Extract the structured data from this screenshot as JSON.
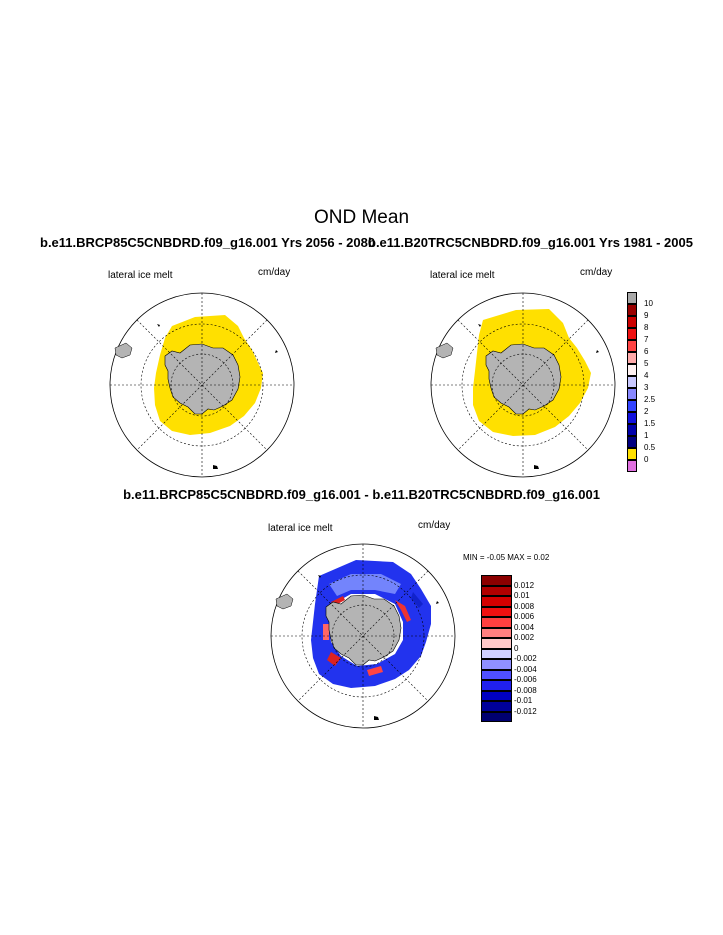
{
  "title": "OND Mean",
  "panels": [
    {
      "title": "b.e11.BRCP85C5CNBDRD.f09_g16.001  Yrs 2056 - 2080",
      "left_label": "lateral ice melt",
      "right_label": "cm/day"
    },
    {
      "title": "b.e11.B20TRC5CNBDRD.f09_g16.001  Yrs 1981 - 2005",
      "left_label": "lateral ice melt",
      "right_label": "cm/day"
    }
  ],
  "difference": {
    "title": "b.e11.BRCP85C5CNBDRD.f09_g16.001 - b.e11.B20TRC5CNBDRD.f09_g16.001",
    "left_label": "lateral ice melt",
    "right_label": "cm/day",
    "min_max": "MIN =  -0.05 MAX =   0.02"
  },
  "colorbar_top": {
    "labels": [
      "10",
      "9",
      "8",
      "7",
      "6",
      "5",
      "4",
      "3",
      "2.5",
      "2",
      "1.5",
      "1",
      "0.5",
      "0"
    ],
    "colors": [
      "#a9a9a9",
      "#990000",
      "#cc0000",
      "#ee1111",
      "#ff4444",
      "#ffaaaa",
      "#fff2f2",
      "#c8c8ff",
      "#8888ff",
      "#3344ff",
      "#1111dd",
      "#0000aa",
      "#000080",
      "#ffe000",
      "#e070e0"
    ]
  },
  "colorbar_diff": {
    "labels": [
      "0.012",
      "0.01",
      "0.008",
      "0.006",
      "0.004",
      "0.002",
      "0",
      "-0.002",
      "-0.004",
      "-0.006",
      "-0.008",
      "-0.01",
      "-0.012"
    ],
    "colors": [
      "#8b0000",
      "#b00000",
      "#d40000",
      "#f01010",
      "#ff4040",
      "#ff8080",
      "#ffc8c8",
      "#d0d0ff",
      "#9090ff",
      "#5050ff",
      "#2020ee",
      "#0000c0",
      "#000099",
      "#000070"
    ]
  },
  "colors": {
    "ice_extent": "#ffe000",
    "land": "#b4b4b4",
    "ocean": "#ffffff"
  }
}
